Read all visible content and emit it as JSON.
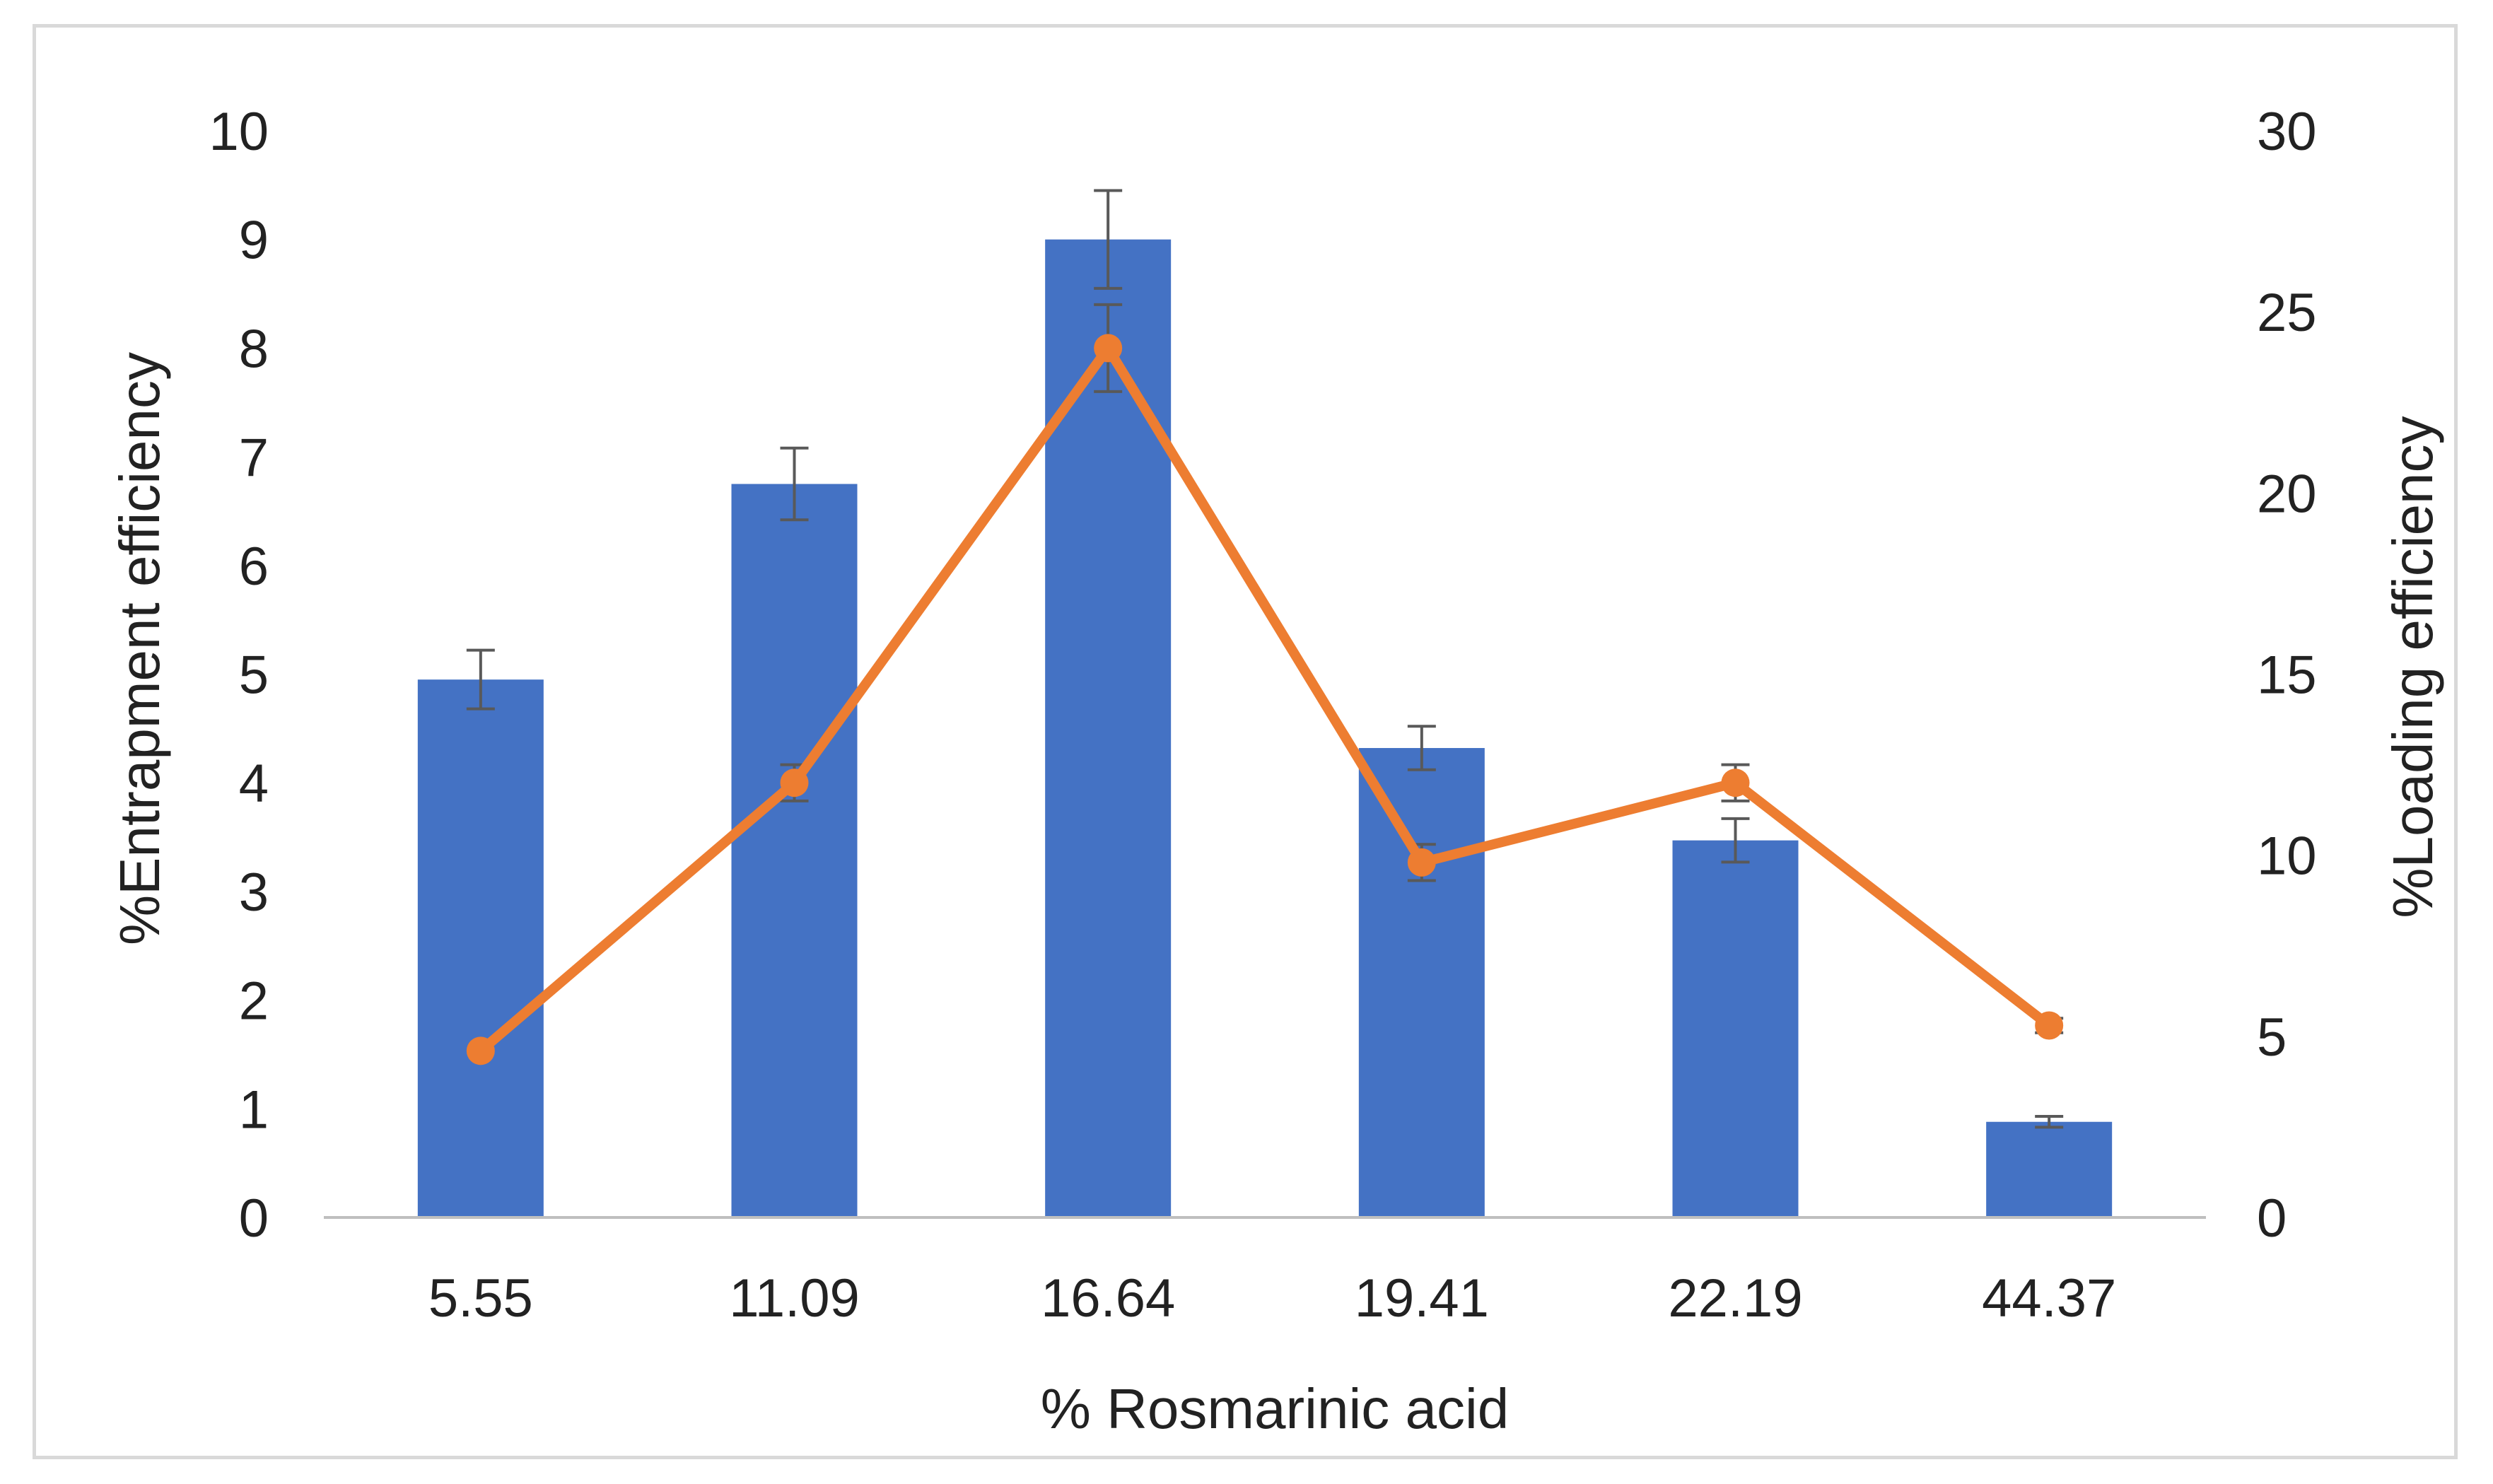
{
  "chart_data": {
    "type": "bar",
    "categories": [
      "5.55",
      "11.09",
      "16.64",
      "19.41",
      "22.19",
      "44.37"
    ],
    "xlabel": "% Rosmarinic acid",
    "series": [
      {
        "name": "%Entrapment efficiency",
        "type": "bar",
        "axis": "left",
        "color": "#4472C4",
        "values": [
          4.95,
          6.75,
          9.0,
          4.32,
          3.47,
          0.88
        ],
        "error": [
          0.27,
          0.33,
          0.45,
          0.2,
          0.2,
          0.05
        ]
      },
      {
        "name": "%Loading efficiency",
        "type": "line",
        "axis": "right",
        "color": "#ED7D31",
        "values": [
          4.6,
          12.0,
          24.0,
          9.8,
          12.0,
          5.3
        ],
        "error": [
          0.0,
          0.5,
          1.2,
          0.5,
          0.5,
          0.2
        ]
      }
    ],
    "y_left": {
      "label": "%Entrapment efficiency",
      "range": [
        0,
        10
      ],
      "ticks": [
        "0",
        "1",
        "2",
        "3",
        "4",
        "5",
        "6",
        "7",
        "8",
        "9",
        "10"
      ]
    },
    "y_right": {
      "label": "%Loading efficiency",
      "range": [
        0,
        30
      ],
      "ticks": [
        "0",
        "5",
        "10",
        "15",
        "20",
        "25",
        "30"
      ]
    },
    "grid": false,
    "error_bar_color": "#595959",
    "axis_color": "#bfbfbf"
  }
}
